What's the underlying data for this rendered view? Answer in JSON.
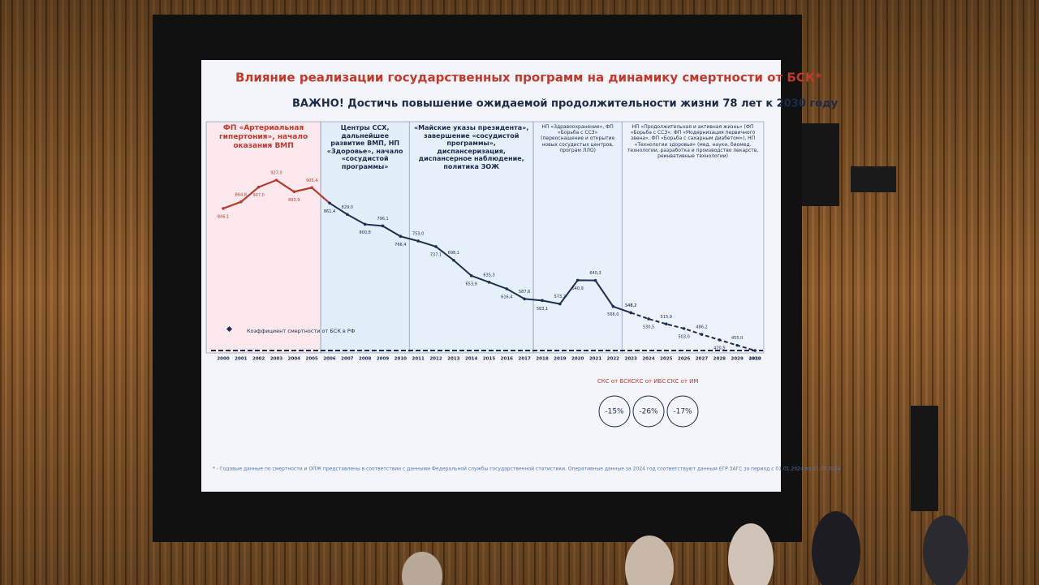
{
  "slide": {
    "title": "Влияние реализации государственных программ на динамику смертности от БСК*",
    "subtitle": "ВАЖНО! Достичь повышение ожидаемой продолжительности жизни 78 лет к 2030 году",
    "periods": [
      "ФП «Артериальная гипертония», начало оказания ВМП",
      "Центры ССХ, дальнейшее развитие ВМП, НП «Здоровье», начало «сосудистой программы»",
      "«Майские указы президента», завершение «сосудистой программы», диспансеризация, диспансерное наблюдение, политика ЗОЖ",
      "НП «Здравоохранение», ФП «Борьба с ССЗ» (переоснащение и открытие новых сосудистых центров, програм ЛЛО)",
      "НП «Продолжительная и активная жизнь» (ФП «Борьба с ССЗ», ФП «Модернизация первичного звена», ФП «Борьба с сахарным диабетом»), НП «Технологии здоровья» (мед. науки, биомед. технологии, разработка и производство лекарств, реинвативные технологии)"
    ],
    "bubbles": [
      {
        "label": "СКС от БСК",
        "value": "-15%"
      },
      {
        "label": "СКС от ИБС",
        "value": "-26%"
      },
      {
        "label": "СКС от ИМ",
        "value": "-17%"
      }
    ],
    "footnote": "* - Годовые данные по смертности и ОПЖ представлены в соответствии с данными Федеральной службы государственной статистики. Оперативные данные за 2024 год соответствуют данным ЕГР ЗАГС за период с 01.01.2024 по 31.03.2024"
  },
  "chart_data": {
    "type": "line",
    "x": [
      2000,
      2001,
      2002,
      2003,
      2004,
      2005,
      2006,
      2007,
      2008,
      2009,
      2010,
      2011,
      2012,
      2013,
      2014,
      2015,
      2016,
      2017,
      2018,
      2019,
      2020,
      2021,
      2022,
      2023,
      2024,
      2025,
      2026,
      2027,
      2028,
      2029,
      2030
    ],
    "series": [
      {
        "name": "Коэффициент смертности от БСК в РФ",
        "color": "#1f2f4f",
        "values": [
          846.1,
          864.8,
          907.0,
          927.0,
          893.9,
          905.4,
          861.4,
          829.0,
          800.8,
          796.1,
          766.4,
          753.0,
          737.1,
          698.1,
          653.9,
          635.3,
          616.4,
          587.6,
          583.1,
          573.2,
          640.9,
          640.3,
          566.0,
          548.2,
          null,
          null,
          null,
          null,
          null,
          null,
          null
        ],
        "value_labels": [
          "846,1",
          "864,8",
          "907,0",
          "927,0",
          "893,9",
          "905,4",
          "861,4",
          "829,0",
          "800,8",
          "796,1",
          "766,4",
          "753,0",
          "737,1",
          "698,1",
          "653,9",
          "635,3",
          "616,4",
          "587,6",
          "583,1",
          "573,2",
          "640,9",
          "640,3",
          "566,0",
          "548,2",
          null,
          null,
          null,
          null,
          null,
          null,
          null
        ]
      },
      {
        "color": "#1f2f4f",
        "values": [
          null,
          null,
          null,
          null,
          null,
          null,
          null,
          null,
          null,
          null,
          null,
          null,
          null,
          null,
          null,
          null,
          null,
          null,
          null,
          null,
          null,
          null,
          null,
          548.2,
          530.5,
          515.9,
          503.0,
          486.2,
          470.5,
          455.0,
          440.2
        ],
        "value_labels": [
          null,
          null,
          null,
          null,
          null,
          null,
          null,
          null,
          null,
          null,
          null,
          null,
          null,
          null,
          null,
          null,
          null,
          null,
          null,
          null,
          null,
          null,
          null,
          "548,2",
          "530,5",
          "515,9",
          "503,0",
          "486,2",
          "470,5",
          "455,0",
          "440,2"
        ]
      }
    ]
  }
}
